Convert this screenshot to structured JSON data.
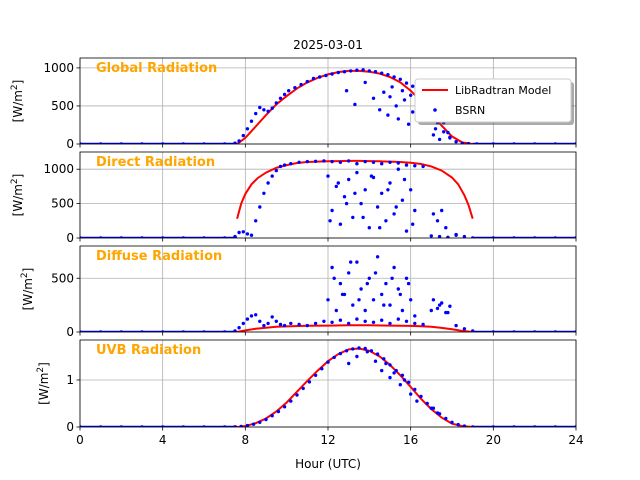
{
  "figure": {
    "title": "2025-03-01",
    "xlabel": "Hour (UTC)",
    "xticks": [
      "0",
      "4",
      "8",
      "12",
      "16",
      "20",
      "24"
    ],
    "legend": {
      "model_label": "LibRadtran Model",
      "obs_label": "BSRN",
      "placement": "right of top panel"
    },
    "colors": {
      "model": "#ff0000",
      "obs": "#0000ff",
      "panel_label": "#ffa500",
      "grid": "#b0b0b0"
    }
  },
  "chart_data": [
    {
      "type": "line",
      "panel_label": "Global Radiation",
      "ylabel_prefix": "[W/m",
      "ylabel_sup": "2",
      "ylabel_suffix": "]",
      "xlim": [
        0,
        24
      ],
      "ylim": [
        0,
        1130
      ],
      "yticks": [
        0,
        500,
        1000
      ],
      "ytick_labels": [
        "0",
        "500",
        "1000"
      ],
      "grid": true,
      "series": [
        {
          "name": "LibRadtran Model",
          "style": "line",
          "x": [
            0,
            7.6,
            8,
            8.5,
            9,
            9.5,
            10,
            10.5,
            11,
            11.5,
            12,
            12.5,
            13,
            13.5,
            14,
            14.5,
            15,
            15.5,
            16,
            16.5,
            17,
            17.5,
            18,
            18.5,
            19,
            24
          ],
          "y": [
            0,
            0,
            80,
            230,
            380,
            520,
            630,
            730,
            810,
            870,
            915,
            945,
            960,
            960,
            950,
            925,
            880,
            810,
            700,
            560,
            400,
            240,
            100,
            20,
            0,
            0
          ]
        },
        {
          "name": "BSRN",
          "style": "points",
          "x": [
            0,
            1,
            2,
            3,
            4,
            5,
            6,
            7,
            7.5,
            7.7,
            7.9,
            8.1,
            8.3,
            8.5,
            8.7,
            8.9,
            9.1,
            9.3,
            9.5,
            9.7,
            9.9,
            10.1,
            10.4,
            10.7,
            11,
            11.3,
            11.6,
            11.9,
            12.2,
            12.5,
            12.8,
            13.1,
            13.4,
            13.7,
            14,
            14.3,
            14.6,
            14.9,
            15.2,
            15.5,
            15.8,
            16.1,
            16.4,
            16.7,
            17,
            17.3,
            17.6,
            17.9,
            18.2,
            18.5,
            18.8,
            19.2,
            20,
            21,
            22,
            23,
            24,
            12.9,
            13.3,
            13.8,
            14.2,
            14.5,
            14.7,
            14.9,
            15.0,
            15.1,
            15.3,
            15.4,
            15.6,
            15.7,
            15.9,
            16.0,
            16.1,
            16.3,
            17.1,
            17.2,
            17.4,
            17.6,
            17.8,
            17.9
          ],
          "y": [
            0,
            0,
            0,
            0,
            0,
            0,
            0,
            0,
            10,
            40,
            110,
            200,
            300,
            400,
            480,
            450,
            430,
            470,
            540,
            600,
            650,
            700,
            740,
            780,
            820,
            860,
            880,
            900,
            920,
            940,
            950,
            960,
            970,
            975,
            960,
            950,
            930,
            910,
            880,
            850,
            800,
            760,
            700,
            560,
            420,
            280,
            160,
            80,
            30,
            10,
            5,
            0,
            0,
            0,
            0,
            0,
            0,
            700,
            520,
            810,
            600,
            450,
            680,
            380,
            620,
            750,
            500,
            330,
            700,
            580,
            260,
            640,
            420,
            720,
            120,
            200,
            60,
            280,
            150,
            90
          ]
        }
      ]
    },
    {
      "type": "line",
      "panel_label": "Direct Radiation",
      "ylabel_prefix": "[W/m",
      "ylabel_sup": "2",
      "ylabel_suffix": "]",
      "xlim": [
        0,
        24
      ],
      "ylim": [
        0,
        1250
      ],
      "yticks": [
        0,
        500,
        1000
      ],
      "ytick_labels": [
        "0",
        "500",
        "1000"
      ],
      "grid": true,
      "series": [
        {
          "name": "LibRadtran Model",
          "style": "line",
          "x": [
            7.6,
            7.8,
            8,
            8.3,
            8.6,
            9,
            9.5,
            10,
            10.5,
            11,
            11.5,
            12,
            12.5,
            13,
            13.5,
            14,
            14.5,
            15,
            15.5,
            16,
            16.5,
            17,
            17.5,
            18,
            18.3,
            18.6,
            18.8,
            19
          ],
          "y": [
            280,
            500,
            640,
            780,
            870,
            950,
            1020,
            1060,
            1090,
            1105,
            1110,
            1115,
            1118,
            1120,
            1120,
            1118,
            1115,
            1110,
            1105,
            1095,
            1075,
            1040,
            980,
            880,
            780,
            620,
            480,
            280
          ]
        },
        {
          "name": "BSRN",
          "style": "points",
          "x": [
            0,
            1,
            2,
            3,
            4,
            5,
            6,
            7,
            7.5,
            7.7,
            7.9,
            8.1,
            8.3,
            8.5,
            8.7,
            8.9,
            9.1,
            9.3,
            9.5,
            9.7,
            9.9,
            10.2,
            10.6,
            11,
            11.4,
            11.8,
            12.2,
            12.6,
            13,
            13.4,
            13.8,
            14.2,
            14.6,
            15,
            15.4,
            15.8,
            16.2,
            16.6,
            17,
            17.4,
            17.8,
            18.2,
            18.6,
            19,
            20,
            21,
            22,
            23,
            24,
            12.0,
            12.2,
            12.4,
            12.6,
            12.8,
            13.0,
            13.2,
            13.4,
            13.6,
            13.8,
            14.0,
            14.2,
            14.4,
            14.6,
            14.8,
            15.0,
            15.2,
            15.4,
            15.6,
            15.8,
            16.0,
            16.2,
            12.1,
            12.5,
            12.9,
            13.3,
            13.7,
            14.1,
            14.5,
            14.9,
            15.3,
            15.7,
            16.1,
            17.1,
            17.3,
            17.5,
            17.7,
            18.2
          ],
          "y": [
            0,
            0,
            0,
            0,
            0,
            0,
            0,
            0,
            20,
            80,
            90,
            60,
            40,
            250,
            450,
            650,
            800,
            900,
            980,
            1040,
            1060,
            1080,
            1100,
            1110,
            1115,
            1120,
            1110,
            1100,
            1120,
            1080,
            1110,
            1100,
            1080,
            1100,
            1090,
            1060,
            1050,
            1040,
            30,
            20,
            10,
            40,
            20,
            0,
            0,
            0,
            0,
            0,
            0,
            900,
            400,
            750,
            200,
            600,
            850,
            300,
            950,
            500,
            700,
            150,
            880,
            450,
            650,
            250,
            800,
            350,
            1000,
            550,
            100,
            700,
            400,
            250,
            800,
            500,
            650,
            300,
            900,
            150,
            700,
            450,
            850,
            200,
            350,
            250,
            400,
            150,
            50
          ]
        }
      ]
    },
    {
      "type": "line",
      "panel_label": "Diffuse Radiation",
      "ylabel_prefix": "[W/m",
      "ylabel_sup": "2",
      "ylabel_suffix": "]",
      "xlim": [
        0,
        24
      ],
      "ylim": [
        0,
        800
      ],
      "yticks": [
        0,
        500
      ],
      "ytick_labels": [
        "0",
        "500"
      ],
      "grid": true,
      "series": [
        {
          "name": "LibRadtran Model",
          "style": "line",
          "x": [
            0,
            7.6,
            8,
            8.5,
            9,
            9.5,
            10,
            11,
            12,
            13,
            14,
            15,
            16,
            16.5,
            17,
            17.5,
            18,
            18.5,
            19,
            24
          ],
          "y": [
            0,
            0,
            15,
            30,
            40,
            48,
            52,
            58,
            60,
            62,
            62,
            60,
            57,
            54,
            48,
            38,
            25,
            10,
            0,
            0
          ]
        },
        {
          "name": "BSRN",
          "style": "points",
          "x": [
            0,
            1,
            2,
            3,
            4,
            5,
            6,
            7,
            7.5,
            7.7,
            7.9,
            8.1,
            8.3,
            8.5,
            8.7,
            8.9,
            9.1,
            9.3,
            9.5,
            9.7,
            9.9,
            10.2,
            10.6,
            11,
            11.4,
            11.8,
            12.2,
            12.6,
            13,
            13.4,
            13.8,
            14.2,
            14.6,
            15,
            15.4,
            15.8,
            16.2,
            16.6,
            17,
            17.4,
            17.8,
            18.2,
            18.6,
            19,
            20,
            21,
            22,
            23,
            24,
            12.0,
            12.2,
            12.4,
            12.6,
            12.8,
            13.0,
            13.2,
            13.4,
            13.6,
            13.8,
            14.0,
            14.2,
            14.4,
            14.6,
            14.8,
            15.0,
            15.2,
            15.4,
            15.6,
            15.8,
            16.0,
            16.2,
            12.3,
            12.7,
            13.1,
            13.5,
            13.9,
            14.3,
            14.7,
            15.1,
            15.5,
            15.9,
            17.1,
            17.3,
            17.5,
            17.7,
            17.9
          ],
          "y": [
            0,
            0,
            0,
            0,
            0,
            0,
            0,
            0,
            10,
            40,
            80,
            120,
            150,
            160,
            100,
            60,
            80,
            140,
            100,
            70,
            60,
            80,
            70,
            60,
            80,
            100,
            90,
            110,
            80,
            120,
            100,
            90,
            110,
            80,
            120,
            100,
            80,
            70,
            200,
            250,
            180,
            60,
            30,
            10,
            0,
            0,
            0,
            0,
            0,
            300,
            600,
            200,
            450,
            350,
            550,
            250,
            650,
            400,
            200,
            500,
            300,
            700,
            350,
            450,
            250,
            600,
            400,
            200,
            500,
            300,
            150,
            500,
            350,
            650,
            300,
            450,
            550,
            250,
            500,
            350,
            450,
            300,
            220,
            270,
            180,
            240
          ]
        }
      ]
    },
    {
      "type": "line",
      "panel_label": "UVB Radiation",
      "ylabel_prefix": "[W/m",
      "ylabel_sup": "2",
      "ylabel_suffix": "]",
      "xlim": [
        0,
        24
      ],
      "ylim": [
        0,
        1.85
      ],
      "yticks": [
        0,
        1
      ],
      "ytick_labels": [
        "0",
        "1"
      ],
      "grid": true,
      "series": [
        {
          "name": "LibRadtran Model",
          "style": "line",
          "x": [
            0,
            7.6,
            8,
            8.5,
            9,
            9.5,
            10,
            10.5,
            11,
            11.5,
            12,
            12.5,
            13,
            13.5,
            14,
            14.5,
            15,
            15.5,
            16,
            16.5,
            17,
            17.5,
            18,
            18.5,
            19,
            24
          ],
          "y": [
            0,
            0,
            0.02,
            0.08,
            0.18,
            0.33,
            0.52,
            0.75,
            0.98,
            1.2,
            1.4,
            1.55,
            1.65,
            1.67,
            1.62,
            1.5,
            1.32,
            1.1,
            0.85,
            0.6,
            0.38,
            0.2,
            0.07,
            0.02,
            0,
            0
          ]
        },
        {
          "name": "BSRN",
          "style": "points",
          "x": [
            0,
            1,
            2,
            3,
            4,
            5,
            6,
            7,
            7.5,
            7.8,
            8.1,
            8.4,
            8.7,
            9,
            9.3,
            9.6,
            9.9,
            10.2,
            10.5,
            10.8,
            11.1,
            11.4,
            11.7,
            12,
            12.3,
            12.6,
            12.9,
            13.2,
            13.5,
            13.8,
            14.1,
            14.4,
            14.7,
            15,
            15.3,
            15.6,
            15.9,
            16.2,
            16.5,
            16.8,
            17.1,
            17.4,
            17.7,
            18,
            18.3,
            18.6,
            19,
            20,
            21,
            22,
            23,
            24,
            13.0,
            13.4,
            13.9,
            14.3,
            14.6,
            14.8,
            15.0,
            15.2,
            15.5,
            15.7,
            16.0,
            16.3,
            17.0,
            17.3
          ],
          "y": [
            0,
            0,
            0,
            0,
            0,
            0,
            0,
            0,
            0.005,
            0.01,
            0.03,
            0.06,
            0.1,
            0.16,
            0.24,
            0.33,
            0.43,
            0.55,
            0.68,
            0.82,
            0.96,
            1.1,
            1.24,
            1.38,
            1.48,
            1.56,
            1.62,
            1.66,
            1.68,
            1.67,
            1.62,
            1.55,
            1.45,
            1.32,
            1.2,
            1.1,
            0.95,
            0.8,
            0.65,
            0.5,
            0.4,
            0.28,
            0.18,
            0.1,
            0.05,
            0.02,
            0,
            0,
            0,
            0,
            0,
            0,
            1.35,
            1.5,
            1.6,
            1.4,
            1.2,
            1.35,
            1.05,
            1.15,
            0.9,
            1.0,
            0.7,
            0.55,
            0.4,
            0.3
          ]
        }
      ]
    }
  ]
}
